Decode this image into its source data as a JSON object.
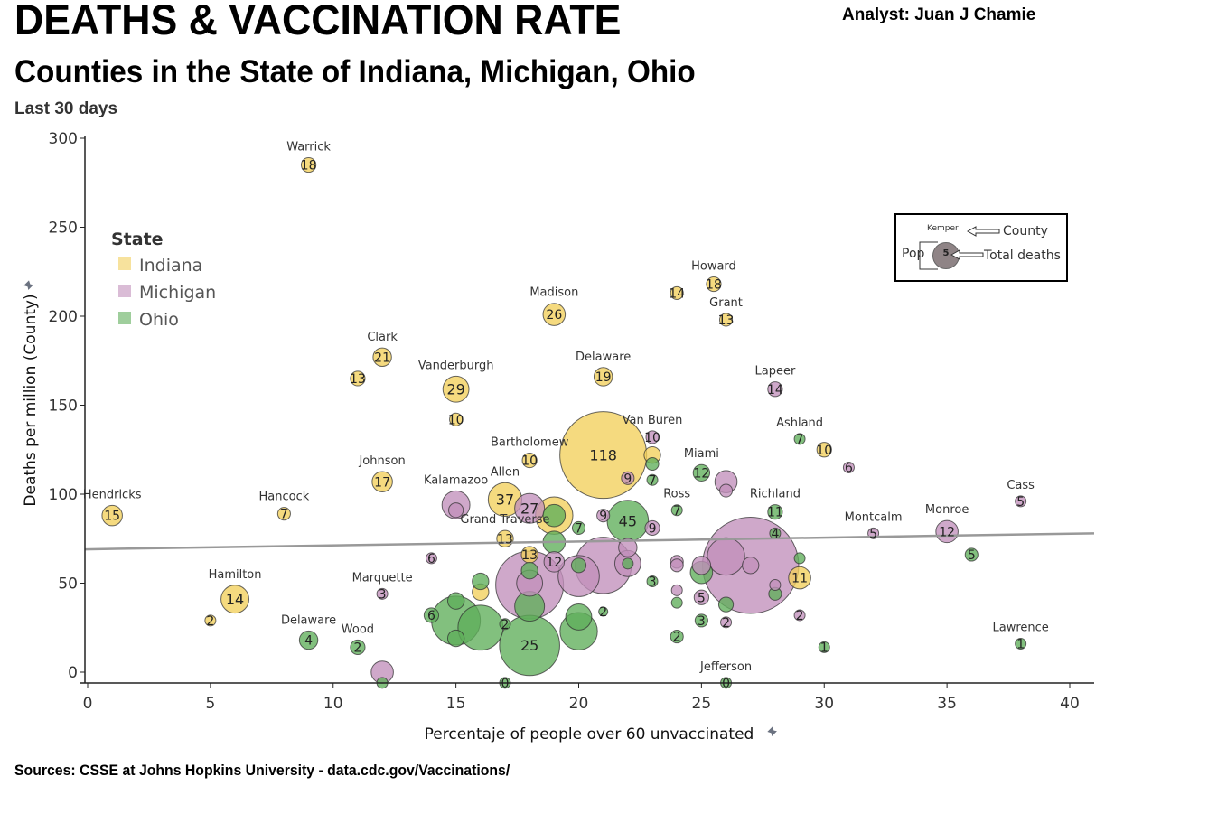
{
  "header": {
    "title": "DEATHS & VACCINATION RATE",
    "subtitle": "Counties in the State of  Indiana, Michigan, Ohio",
    "period": "Last 30 days",
    "analyst": "Analyst: Juan J Chamie"
  },
  "footer": {
    "sources": "Sources: CSSE at Johns Hopkins University - data.cdc.gov/Vaccinations/"
  },
  "key": {
    "county_example": "Kemper",
    "county_label": "County",
    "pop_label": "Pop",
    "deaths_example": "5",
    "deaths_label": "Total deaths"
  },
  "icons": {
    "axis_pin": "pin-icon",
    "key_arrow": "arrow-left-icon"
  },
  "colors": {
    "Indiana": "#f2cf5b",
    "Michigan": "#c28fbb",
    "Ohio": "#5fae5a",
    "trend": "#999999"
  },
  "chart_data": {
    "type": "scatter",
    "subtype": "bubble",
    "title": "DEATHS & VACCINATION RATE",
    "subtitle": "Counties in the State of  Indiana, Michigan, Ohio",
    "xlabel": "Percentaje of people over 60 unvaccinated",
    "ylabel": "Deaths per million (County)",
    "xlim": [
      0,
      41
    ],
    "ylim": [
      -6,
      302
    ],
    "xticks": [
      0,
      5,
      10,
      15,
      20,
      25,
      30,
      35,
      40
    ],
    "yticks": [
      0,
      50,
      100,
      150,
      200,
      250,
      300
    ],
    "grid": false,
    "legend": {
      "title": "State",
      "placement": "top-left",
      "entries": [
        "Indiana",
        "Michigan",
        "Ohio"
      ]
    },
    "size_encoding": "Population",
    "label_encoding": "Total deaths",
    "trend_line": {
      "x": [
        0,
        41
      ],
      "y": [
        69,
        78
      ]
    },
    "points": [
      {
        "county": "Warrick",
        "state": "Indiana",
        "x": 9,
        "y": 285,
        "deaths": 18,
        "size": 1.2
      },
      {
        "county": "Clark",
        "state": "Indiana",
        "x": 12,
        "y": 177,
        "deaths": 21,
        "size": 1.4
      },
      {
        "county": "",
        "state": "Indiana",
        "x": 11,
        "y": 165,
        "deaths": 13,
        "size": 1.2
      },
      {
        "county": "Vanderburgh",
        "state": "Indiana",
        "x": 15,
        "y": 159,
        "deaths": 29,
        "size": 1.8
      },
      {
        "county": "",
        "state": "Indiana",
        "x": 15,
        "y": 142,
        "deaths": 10,
        "size": 1.1
      },
      {
        "county": "Madison",
        "state": "Indiana",
        "x": 19,
        "y": 201,
        "deaths": 26,
        "size": 1.6
      },
      {
        "county": "Delaware",
        "state": "Indiana",
        "x": 21,
        "y": 166,
        "deaths": 19,
        "size": 1.4
      },
      {
        "county": "Howard",
        "state": "Indiana",
        "x": 25.5,
        "y": 218,
        "deaths": 18,
        "size": 1.2
      },
      {
        "county": "",
        "state": "Indiana",
        "x": 24,
        "y": 213,
        "deaths": 14,
        "size": 1.1
      },
      {
        "county": "Grant",
        "state": "Indiana",
        "x": 26,
        "y": 198,
        "deaths": 13,
        "size": 1.1
      },
      {
        "county": "Lapeer",
        "state": "Michigan",
        "x": 28,
        "y": 159,
        "deaths": 14,
        "size": 1.2
      },
      {
        "county": "Bartholomew",
        "state": "Indiana",
        "x": 18,
        "y": 119,
        "deaths": 10,
        "size": 1.2
      },
      {
        "county": "",
        "state": "Indiana",
        "x": 21,
        "y": 122,
        "deaths": 118,
        "size": 5.0
      },
      {
        "county": "Van Buren",
        "state": "Michigan",
        "x": 23,
        "y": 132,
        "deaths": 10,
        "size": 1.1
      },
      {
        "county": "",
        "state": "Indiana",
        "x": 23,
        "y": 122,
        "deaths": null,
        "size": 1.3
      },
      {
        "county": "",
        "state": "Ohio",
        "x": 23,
        "y": 117,
        "deaths": null,
        "size": 1.1
      },
      {
        "county": "",
        "state": "Michigan",
        "x": 22,
        "y": 109,
        "deaths": 9,
        "size": 1.1
      },
      {
        "county": "",
        "state": "Ohio",
        "x": 23,
        "y": 108,
        "deaths": 7,
        "size": 1.0
      },
      {
        "county": "Miami",
        "state": "Ohio",
        "x": 25,
        "y": 112,
        "deaths": 12,
        "size": 1.3
      },
      {
        "county": "",
        "state": "Michigan",
        "x": 26,
        "y": 107,
        "deaths": null,
        "size": 1.6
      },
      {
        "county": "",
        "state": "Michigan",
        "x": 26,
        "y": 102,
        "deaths": null,
        "size": 1.1
      },
      {
        "county": "Ashland",
        "state": "Ohio",
        "x": 29,
        "y": 131,
        "deaths": 7,
        "size": 1.0
      },
      {
        "county": "",
        "state": "Indiana",
        "x": 30,
        "y": 125,
        "deaths": 10,
        "size": 1.2
      },
      {
        "county": "",
        "state": "Michigan",
        "x": 31,
        "y": 115,
        "deaths": 6,
        "size": 1.0
      },
      {
        "county": "Johnson",
        "state": "Indiana",
        "x": 12,
        "y": 107,
        "deaths": 17,
        "size": 1.5
      },
      {
        "county": "Hendricks",
        "state": "Indiana",
        "x": 1,
        "y": 88,
        "deaths": 15,
        "size": 1.5
      },
      {
        "county": "Hancock",
        "state": "Indiana",
        "x": 8,
        "y": 89,
        "deaths": 7,
        "size": 1.1
      },
      {
        "county": "Kalamazoo",
        "state": "Michigan",
        "x": 15,
        "y": 94,
        "deaths": null,
        "size": 1.9
      },
      {
        "county": "",
        "state": "Michigan",
        "x": 15,
        "y": 91,
        "deaths": null,
        "size": 1.2
      },
      {
        "county": "Allen",
        "state": "Indiana",
        "x": 17,
        "y": 97,
        "deaths": 37,
        "size": 2.2
      },
      {
        "county": "",
        "state": "Michigan",
        "x": 18,
        "y": 92,
        "deaths": 27,
        "size": 2.0
      },
      {
        "county": "",
        "state": "Indiana",
        "x": 19,
        "y": 88,
        "deaths": null,
        "size": 2.4
      },
      {
        "county": "",
        "state": "Ohio",
        "x": 19,
        "y": 88,
        "deaths": null,
        "size": 1.6
      },
      {
        "county": "",
        "state": "Ohio",
        "x": 20,
        "y": 81,
        "deaths": 7,
        "size": 1.1
      },
      {
        "county": "",
        "state": "Michigan",
        "x": 21,
        "y": 88,
        "deaths": 9,
        "size": 1.1
      },
      {
        "county": "",
        "state": "Ohio",
        "x": 22,
        "y": 85,
        "deaths": 45,
        "size": 2.6
      },
      {
        "county": "",
        "state": "Michigan",
        "x": 23,
        "y": 81,
        "deaths": 9,
        "size": 1.2
      },
      {
        "county": "Ross",
        "state": "Ohio",
        "x": 24,
        "y": 91,
        "deaths": 7,
        "size": 1.0
      },
      {
        "county": "Richland",
        "state": "Ohio",
        "x": 28,
        "y": 90,
        "deaths": 11,
        "size": 1.2
      },
      {
        "county": "",
        "state": "Ohio",
        "x": 28,
        "y": 78,
        "deaths": 4,
        "size": 1.0
      },
      {
        "county": "Montcalm",
        "state": "Michigan",
        "x": 32,
        "y": 78,
        "deaths": 5,
        "size": 1.0
      },
      {
        "county": "Monroe",
        "state": "Michigan",
        "x": 35,
        "y": 79,
        "deaths": 12,
        "size": 1.6
      },
      {
        "county": "Cass",
        "state": "Michigan",
        "x": 38,
        "y": 96,
        "deaths": 5,
        "size": 1.0
      },
      {
        "county": "",
        "state": "Ohio",
        "x": 36,
        "y": 66,
        "deaths": 5,
        "size": 1.1
      },
      {
        "county": "Grand Traverse",
        "state": "Indiana",
        "x": 17,
        "y": 75,
        "deaths": 13,
        "size": 1.3
      },
      {
        "county": "",
        "state": "Indiana",
        "x": 18,
        "y": 66,
        "deaths": 13,
        "size": 1.3
      },
      {
        "county": "",
        "state": "Ohio",
        "x": 19,
        "y": 73,
        "deaths": null,
        "size": 1.6
      },
      {
        "county": "",
        "state": "Michigan",
        "x": 14,
        "y": 64,
        "deaths": 6,
        "size": 1.0
      },
      {
        "county": "",
        "state": "Michigan",
        "x": 19,
        "y": 62,
        "deaths": 12,
        "size": 1.5
      },
      {
        "county": "",
        "state": "Michigan",
        "x": 18,
        "y": 49,
        "deaths": null,
        "size": 4.0
      },
      {
        "county": "",
        "state": "Michigan",
        "x": 18,
        "y": 50,
        "deaths": null,
        "size": 1.8
      },
      {
        "county": "",
        "state": "Ohio",
        "x": 18,
        "y": 57,
        "deaths": null,
        "size": 1.3
      },
      {
        "county": "",
        "state": "Michigan",
        "x": 20,
        "y": 54,
        "deaths": null,
        "size": 2.6
      },
      {
        "county": "",
        "state": "Ohio",
        "x": 20,
        "y": 60,
        "deaths": null,
        "size": 1.2
      },
      {
        "county": "",
        "state": "Michigan",
        "x": 21,
        "y": 60,
        "deaths": null,
        "size": 3.4
      },
      {
        "county": "",
        "state": "Michigan",
        "x": 22,
        "y": 70,
        "deaths": null,
        "size": 1.4
      },
      {
        "county": "",
        "state": "Michigan",
        "x": 22,
        "y": 61,
        "deaths": null,
        "size": 1.8
      },
      {
        "county": "",
        "state": "Ohio",
        "x": 22,
        "y": 61,
        "deaths": null,
        "size": 1.0
      },
      {
        "county": "",
        "state": "Ohio",
        "x": 23,
        "y": 51,
        "deaths": 3,
        "size": 1.0
      },
      {
        "county": "",
        "state": "Michigan",
        "x": 24,
        "y": 62,
        "deaths": null,
        "size": 1.1
      },
      {
        "county": "",
        "state": "Michigan",
        "x": 24,
        "y": 60,
        "deaths": null,
        "size": 1.1
      },
      {
        "county": "",
        "state": "Ohio",
        "x": 25,
        "y": 56,
        "deaths": null,
        "size": 1.6
      },
      {
        "county": "",
        "state": "Michigan",
        "x": 25,
        "y": 60,
        "deaths": null,
        "size": 1.4
      },
      {
        "county": "",
        "state": "Michigan",
        "x": 26,
        "y": 65,
        "deaths": null,
        "size": 2.4
      },
      {
        "county": "",
        "state": "Michigan",
        "x": 27,
        "y": 60,
        "deaths": null,
        "size": 5.5
      },
      {
        "county": "",
        "state": "Michigan",
        "x": 27,
        "y": 60,
        "deaths": null,
        "size": 1.3
      },
      {
        "county": "",
        "state": "Ohio",
        "x": 29,
        "y": 64,
        "deaths": null,
        "size": 1.0
      },
      {
        "county": "",
        "state": "Indiana",
        "x": 29,
        "y": 53,
        "deaths": 11,
        "size": 1.6
      },
      {
        "county": "",
        "state": "Michigan",
        "x": 28,
        "y": 49,
        "deaths": null,
        "size": 1.0
      },
      {
        "county": "",
        "state": "Ohio",
        "x": 28,
        "y": 44,
        "deaths": null,
        "size": 1.1
      },
      {
        "county": "",
        "state": "Michigan",
        "x": 24,
        "y": 46,
        "deaths": null,
        "size": 1.0
      },
      {
        "county": "",
        "state": "Ohio",
        "x": 24,
        "y": 39,
        "deaths": null,
        "size": 1.0
      },
      {
        "county": "",
        "state": "Michigan",
        "x": 25,
        "y": 42,
        "deaths": 5,
        "size": 1.2
      },
      {
        "county": "",
        "state": "Ohio",
        "x": 26,
        "y": 38,
        "deaths": null,
        "size": 1.2
      },
      {
        "county": "",
        "state": "Ohio",
        "x": 25,
        "y": 29,
        "deaths": 3,
        "size": 1.1
      },
      {
        "county": "",
        "state": "Michigan",
        "x": 26,
        "y": 28,
        "deaths": 2,
        "size": 1.0
      },
      {
        "county": "",
        "state": "Michigan",
        "x": 29,
        "y": 32,
        "deaths": 2,
        "size": 1.0
      },
      {
        "county": "",
        "state": "Ohio",
        "x": 24,
        "y": 20,
        "deaths": 2,
        "size": 1.1
      },
      {
        "county": "",
        "state": "Ohio",
        "x": 30,
        "y": 14,
        "deaths": 1,
        "size": 1.0
      },
      {
        "county": "Lawrence",
        "state": "Ohio",
        "x": 38,
        "y": 16,
        "deaths": 1,
        "size": 1.0
      },
      {
        "county": "Jefferson",
        "state": "Ohio",
        "x": 26,
        "y": -6,
        "deaths": 0,
        "size": 1.0
      },
      {
        "county": "Hamilton",
        "state": "Indiana",
        "x": 6,
        "y": 41,
        "deaths": 14,
        "size": 1.9
      },
      {
        "county": "",
        "state": "Indiana",
        "x": 5,
        "y": 29,
        "deaths": 2,
        "size": 1.0
      },
      {
        "county": "Marquette",
        "state": "Michigan",
        "x": 12,
        "y": 44,
        "deaths": 3,
        "size": 1.0
      },
      {
        "county": "Delaware",
        "state": "Ohio",
        "x": 9,
        "y": 18,
        "deaths": 4,
        "size": 1.4
      },
      {
        "county": "Wood",
        "state": "Ohio",
        "x": 11,
        "y": 14,
        "deaths": 2,
        "size": 1.2
      },
      {
        "county": "",
        "state": "Michigan",
        "x": 12,
        "y": 0,
        "deaths": null,
        "size": 1.6
      },
      {
        "county": "",
        "state": "Ohio",
        "x": 12,
        "y": -6,
        "deaths": null,
        "size": 1.0
      },
      {
        "county": "",
        "state": "Indiana",
        "x": 16,
        "y": 45,
        "deaths": null,
        "size": 1.3
      },
      {
        "county": "",
        "state": "Ohio",
        "x": 16,
        "y": 51,
        "deaths": null,
        "size": 1.3
      },
      {
        "county": "",
        "state": "Ohio",
        "x": 14,
        "y": 32,
        "deaths": 6,
        "size": 1.2
      },
      {
        "county": "",
        "state": "Ohio",
        "x": 15,
        "y": 29,
        "deaths": null,
        "size": 3.0
      },
      {
        "county": "",
        "state": "Ohio",
        "x": 15,
        "y": 40,
        "deaths": null,
        "size": 1.3
      },
      {
        "county": "",
        "state": "Ohio",
        "x": 15,
        "y": 19,
        "deaths": null,
        "size": 1.3
      },
      {
        "county": "",
        "state": "Ohio",
        "x": 16,
        "y": 25,
        "deaths": null,
        "size": 2.8
      },
      {
        "county": "",
        "state": "Ohio",
        "x": 17,
        "y": 27,
        "deaths": 2,
        "size": 1.0
      },
      {
        "county": "",
        "state": "Ohio",
        "x": 18,
        "y": 37,
        "deaths": null,
        "size": 2.0
      },
      {
        "county": "",
        "state": "Ohio",
        "x": 18,
        "y": 15,
        "deaths": 25,
        "size": 3.6
      },
      {
        "county": "",
        "state": "Ohio",
        "x": 17,
        "y": -6,
        "deaths": 0,
        "size": 1.0
      },
      {
        "county": "",
        "state": "Ohio",
        "x": 20,
        "y": 23,
        "deaths": null,
        "size": 2.4
      },
      {
        "county": "",
        "state": "Ohio",
        "x": 20,
        "y": 31,
        "deaths": null,
        "size": 1.8
      },
      {
        "county": "",
        "state": "Ohio",
        "x": 21,
        "y": 34,
        "deaths": 2,
        "size": 0.9
      }
    ]
  }
}
